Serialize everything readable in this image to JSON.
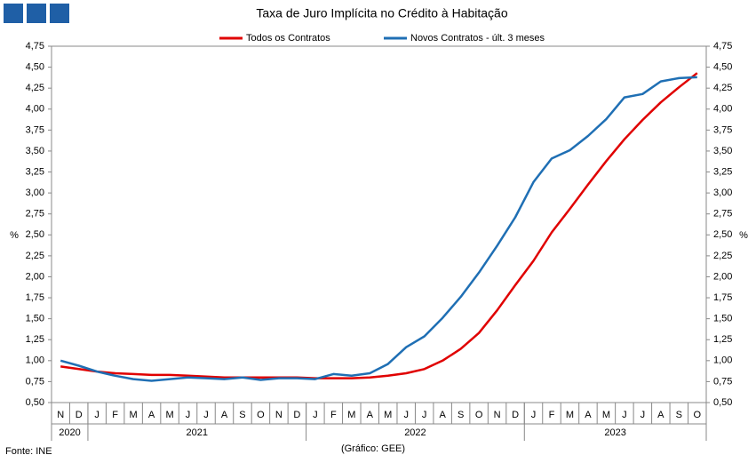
{
  "chart_data": {
    "type": "line",
    "title": "Taxa de Juro Implícita  no Crédito à Habitação",
    "ylabel": "%",
    "y2label": "%",
    "source": "Fonte: INE",
    "credit": "(Gráfico: GEE)",
    "categories": [
      "N",
      "D",
      "J",
      "F",
      "M",
      "A",
      "M",
      "J",
      "J",
      "A",
      "S",
      "O",
      "N",
      "D",
      "J",
      "F",
      "M",
      "A",
      "M",
      "J",
      "J",
      "A",
      "S",
      "O",
      "N",
      "D",
      "J",
      "F",
      "M",
      "A",
      "M",
      "J",
      "J",
      "A",
      "S",
      "O"
    ],
    "years": [
      "2020",
      "2021",
      "2022",
      "2023"
    ],
    "series": [
      {
        "name": "Todos os Contratos",
        "color": "#e00000",
        "values": [
          0.93,
          0.9,
          0.87,
          0.85,
          0.84,
          0.83,
          0.83,
          0.82,
          0.81,
          0.8,
          0.8,
          0.8,
          0.8,
          0.8,
          0.79,
          0.79,
          0.79,
          0.8,
          0.82,
          0.85,
          0.9,
          1.0,
          1.14,
          1.33,
          1.6,
          1.9,
          2.19,
          2.53,
          2.81,
          3.1,
          3.38,
          3.64,
          3.87,
          4.08,
          4.26,
          4.43
        ]
      },
      {
        "name": "Novos Contratos - últ. 3 meses",
        "color": "#1f6fb4",
        "values": [
          1.0,
          0.94,
          0.87,
          0.82,
          0.78,
          0.76,
          0.78,
          0.8,
          0.79,
          0.78,
          0.8,
          0.77,
          0.79,
          0.79,
          0.78,
          0.84,
          0.82,
          0.85,
          0.96,
          1.16,
          1.29,
          1.51,
          1.76,
          2.05,
          2.37,
          2.71,
          3.13,
          3.41,
          3.51,
          3.68,
          3.88,
          4.14,
          4.18,
          4.33,
          4.37,
          4.38
        ]
      }
    ],
    "ylim": [
      0.5,
      4.75
    ],
    "yticks": [
      {
        "value": 0.5,
        "label": "0,50"
      },
      {
        "value": 0.75,
        "label": "0,75"
      },
      {
        "value": 1,
        "label": "1,00"
      },
      {
        "value": 1.25,
        "label": "1,25"
      },
      {
        "value": 1.5,
        "label": "1,50"
      },
      {
        "value": 1.75,
        "label": "1,75"
      },
      {
        "value": 2,
        "label": "2,00"
      },
      {
        "value": 2.25,
        "label": "2,25"
      },
      {
        "value": 2.5,
        "label": "2,50"
      },
      {
        "value": 2.75,
        "label": "2,75"
      },
      {
        "value": 3,
        "label": "3,00"
      },
      {
        "value": 3.25,
        "label": "3,25"
      },
      {
        "value": 3.5,
        "label": "3,50"
      },
      {
        "value": 3.75,
        "label": "3,75"
      },
      {
        "value": 4,
        "label": "4,00"
      },
      {
        "value": 4.25,
        "label": "4,25"
      },
      {
        "value": 4.5,
        "label": "4,50"
      },
      {
        "value": 4.75,
        "label": "4,75"
      }
    ],
    "y2lim": [
      0.5,
      4.75
    ],
    "y2ticks": [
      {
        "value": 0.5,
        "label": "0,50"
      },
      {
        "value": 0.75,
        "label": "0,75"
      },
      {
        "value": 1,
        "label": "1,00"
      },
      {
        "value": 1.25,
        "label": "1,25"
      },
      {
        "value": 1.5,
        "label": "1,50"
      },
      {
        "value": 1.75,
        "label": "1,75"
      },
      {
        "value": 2,
        "label": "2,00"
      },
      {
        "value": 2.25,
        "label": "2,25"
      },
      {
        "value": 2.5,
        "label": "2,50"
      },
      {
        "value": 2.75,
        "label": "2,75"
      },
      {
        "value": 3,
        "label": "3,00"
      },
      {
        "value": 3.25,
        "label": "3,25"
      },
      {
        "value": 3.5,
        "label": "3,50"
      },
      {
        "value": 3.75,
        "label": "3,75"
      },
      {
        "value": 4,
        "label": "4,00"
      },
      {
        "value": 4.25,
        "label": "4,25"
      },
      {
        "value": 4.5,
        "label": "4,50"
      },
      {
        "value": 4.75,
        "label": "4,75"
      }
    ],
    "grid": false,
    "legend": "top"
  }
}
